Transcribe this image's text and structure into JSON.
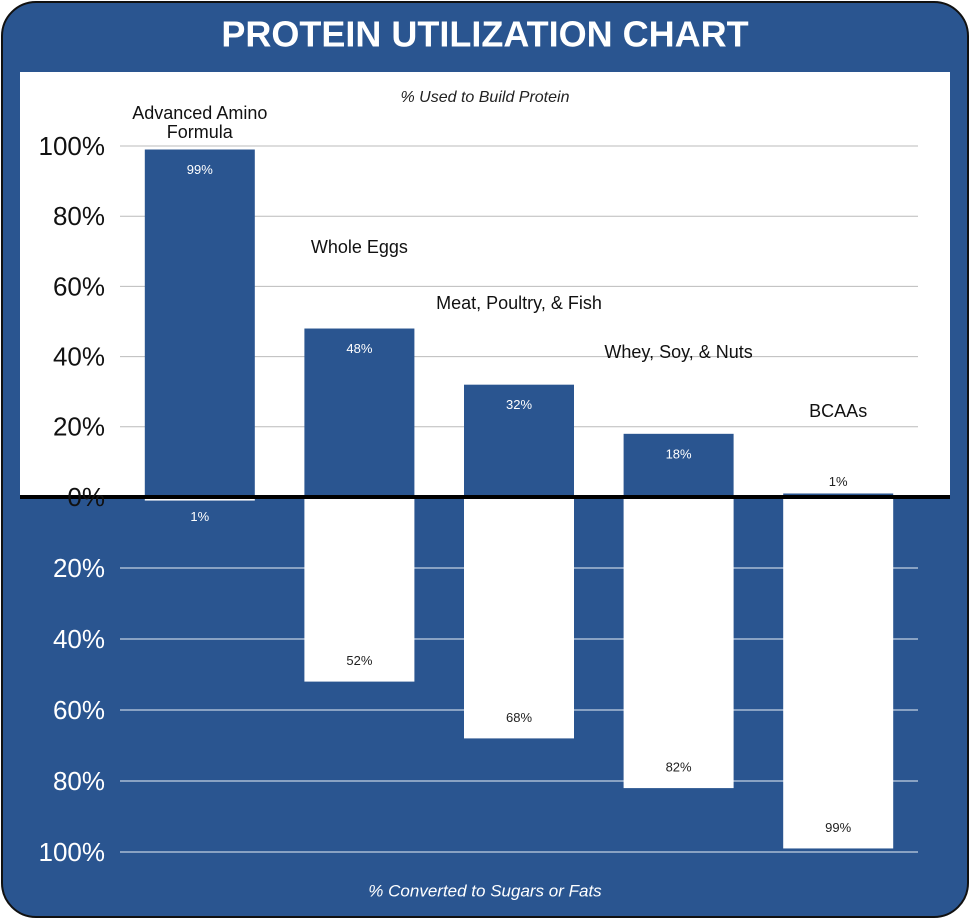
{
  "chart_data": {
    "type": "bar",
    "title": "PROTEIN UTILIZATION CHART",
    "categories": [
      "Advanced Amino Formula",
      "Whole Eggs",
      "Meat, Poultry, & Fish",
      "Whey, Soy, & Nuts",
      "BCAAs"
    ],
    "series": [
      {
        "name": "% Used to Build Protein",
        "color": "#2a5590",
        "values": [
          99,
          48,
          32,
          18,
          1
        ],
        "value_labels": [
          "99%",
          "48%",
          "32%",
          "18%",
          "1%"
        ]
      },
      {
        "name": "% Converted to Sugars or Fats",
        "color": "#ffffff",
        "axis": "y2",
        "values": [
          1,
          52,
          68,
          82,
          99
        ],
        "value_labels": [
          "1%",
          "52%",
          "68%",
          "82%",
          "99%"
        ]
      }
    ],
    "ylim": [
      0,
      100
    ],
    "yticks": [
      {
        "value": 0,
        "label": "0%"
      },
      {
        "value": 20,
        "label": "20%"
      },
      {
        "value": 40,
        "label": "40%"
      },
      {
        "value": 60,
        "label": "60%"
      },
      {
        "value": 80,
        "label": "80%"
      },
      {
        "value": 100,
        "label": "100%"
      }
    ],
    "y2lim": [
      0,
      100
    ],
    "y2ticks": [
      {
        "value": 20,
        "label": "20%"
      },
      {
        "value": 40,
        "label": "40%"
      },
      {
        "value": 60,
        "label": "60%"
      },
      {
        "value": 80,
        "label": "80%"
      },
      {
        "value": 100,
        "label": "100%"
      }
    ],
    "grid": true
  }
}
